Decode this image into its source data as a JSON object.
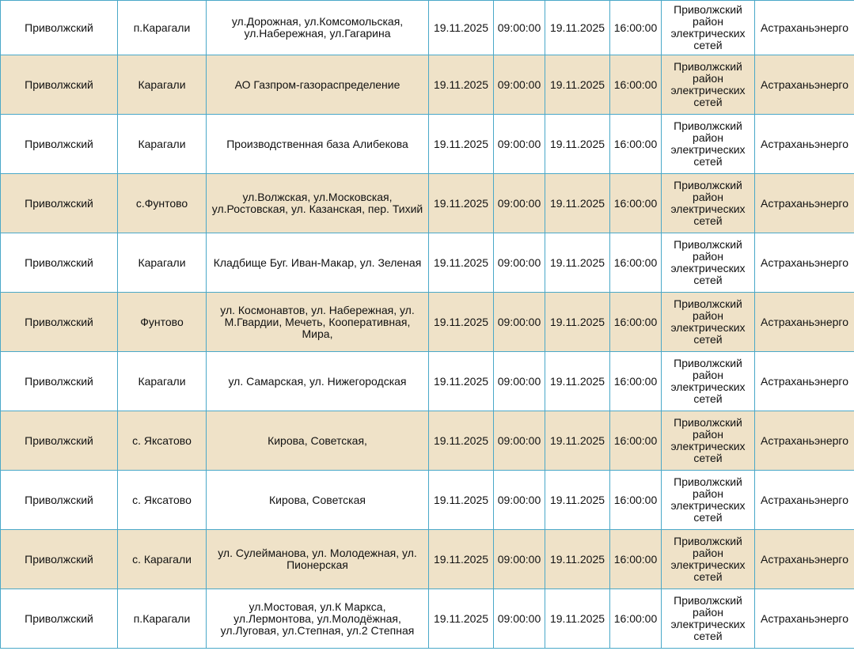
{
  "table": {
    "rows": [
      [
        "Приволжский",
        "п.Карагали",
        "ул.Дорожная, ул.Комсомольская, ул.Набережная, ул.Гагарина",
        "19.11.2025",
        "09:00:00",
        "19.11.2025",
        "16:00:00",
        "Приволжский район электрических сетей",
        "Астраханьэнерго"
      ],
      [
        "Приволжский",
        "Карагали",
        "АО Газпром-газораспределение",
        "19.11.2025",
        "09:00:00",
        "19.11.2025",
        "16:00:00",
        "Приволжский район электрических сетей",
        "Астраханьэнерго"
      ],
      [
        "Приволжский",
        "Карагали",
        "Производственная база Алибекова",
        "19.11.2025",
        "09:00:00",
        "19.11.2025",
        "16:00:00",
        "Приволжский район электрических сетей",
        "Астраханьэнерго"
      ],
      [
        "Приволжский",
        "с.Фунтово",
        "ул.Волжская, ул.Московская, ул.Ростовская, ул. Казанская, пер. Тихий",
        "19.11.2025",
        "09:00:00",
        "19.11.2025",
        "16:00:00",
        "Приволжский район электрических сетей",
        "Астраханьэнерго"
      ],
      [
        "Приволжский",
        "Карагали",
        "Кладбище Буг. Иван-Макар, ул. Зеленая",
        "19.11.2025",
        "09:00:00",
        "19.11.2025",
        "16:00:00",
        "Приволжский район электрических сетей",
        "Астраханьэнерго"
      ],
      [
        "Приволжский",
        "Фунтово",
        "ул. Космонавтов, ул. Набережная, ул. М.Гвардии, Мечеть, Кооперативная, Мира,",
        "19.11.2025",
        "09:00:00",
        "19.11.2025",
        "16:00:00",
        "Приволжский район электрических сетей",
        "Астраханьэнерго"
      ],
      [
        "Приволжский",
        "Карагали",
        "ул. Самарская, ул. Нижегородская",
        "19.11.2025",
        "09:00:00",
        "19.11.2025",
        "16:00:00",
        "Приволжский район электрических сетей",
        "Астраханьэнерго"
      ],
      [
        "Приволжский",
        "с. Яксатово",
        "Кирова, Советская,",
        "19.11.2025",
        "09:00:00",
        "19.11.2025",
        "16:00:00",
        "Приволжский район электрических сетей",
        "Астраханьэнерго"
      ],
      [
        "Приволжский",
        "с. Яксатово",
        "Кирова, Советская",
        "19.11.2025",
        "09:00:00",
        "19.11.2025",
        "16:00:00",
        "Приволжский район электрических сетей",
        "Астраханьэнерго"
      ],
      [
        "Приволжский",
        "с. Карагали",
        "ул. Сулейманова, ул. Молодежная, ул. Пионерская",
        "19.11.2025",
        "09:00:00",
        "19.11.2025",
        "16:00:00",
        "Приволжский район электрических сетей",
        "Астраханьэнерго"
      ],
      [
        "Приволжский",
        "п.Карагали",
        "ул.Мостовая, ул.К Маркса, ул.Лермонтова, ул.Молодёжная, ул.Луговая, ул.Степная, ул.2 Степная",
        "19.11.2025",
        "09:00:00",
        "19.11.2025",
        "16:00:00",
        "Приволжский район электрических сетей",
        "Астраханьэнерго"
      ]
    ]
  }
}
